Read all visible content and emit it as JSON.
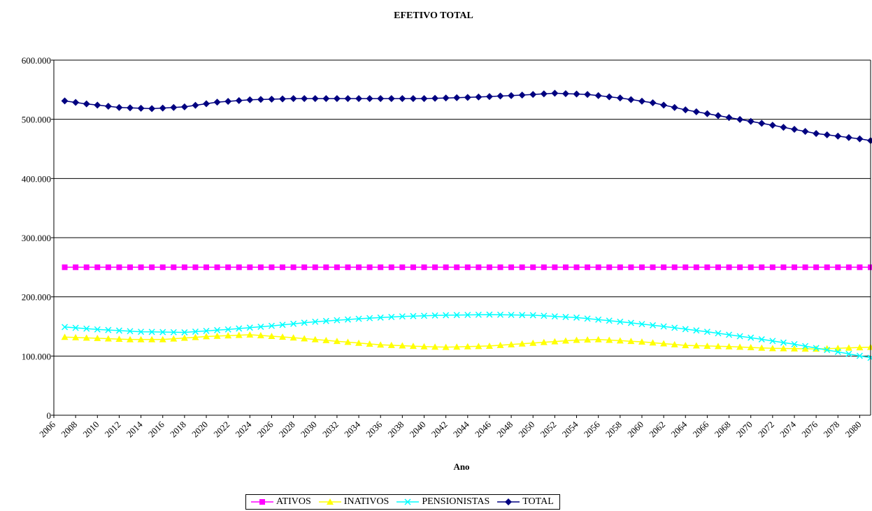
{
  "chart_data": {
    "type": "line",
    "title": "EFETIVO TOTAL",
    "xlabel": "Ano",
    "ylabel": "",
    "xlim": [
      2006,
      2081
    ],
    "ylim": [
      0,
      600000
    ],
    "yticks": [
      0,
      100000,
      200000,
      300000,
      400000,
      500000,
      600000
    ],
    "ytick_labels": [
      "0",
      "100.000",
      "200.000",
      "300.000",
      "400.000",
      "500.000",
      "600.000"
    ],
    "xtick_labels": [
      "2006",
      "2008",
      "2010",
      "2012",
      "2014",
      "2016",
      "2018",
      "2020",
      "2022",
      "2024",
      "2026",
      "2028",
      "2030",
      "2032",
      "2034",
      "2036",
      "2038",
      "2040",
      "2042",
      "2044",
      "2046",
      "2048",
      "2050",
      "2052",
      "2054",
      "2056",
      "2058",
      "2060",
      "2062",
      "2064",
      "2066",
      "2068",
      "2070",
      "2072",
      "2074",
      "2076",
      "2078",
      "2080"
    ],
    "grid": "horizontal",
    "legend_position": "bottom",
    "x_start": 2007,
    "x_end": 2081,
    "series": [
      {
        "name": "ATIVOS",
        "color": "#ff00ff",
        "marker": "square",
        "keyframes": [
          [
            2007,
            250000
          ],
          [
            2081,
            250000
          ]
        ]
      },
      {
        "name": "INATIVOS",
        "color": "#ffff00",
        "marker": "triangle",
        "keyframes": [
          [
            2007,
            132000
          ],
          [
            2013,
            128000
          ],
          [
            2016,
            128000
          ],
          [
            2020,
            133000
          ],
          [
            2024,
            136000
          ],
          [
            2028,
            131000
          ],
          [
            2032,
            125000
          ],
          [
            2036,
            119000
          ],
          [
            2040,
            116000
          ],
          [
            2042,
            115000
          ],
          [
            2046,
            117000
          ],
          [
            2050,
            122000
          ],
          [
            2054,
            127000
          ],
          [
            2056,
            128000
          ],
          [
            2060,
            124000
          ],
          [
            2064,
            118000
          ],
          [
            2068,
            116000
          ],
          [
            2072,
            113000
          ],
          [
            2076,
            112000
          ],
          [
            2081,
            115000
          ]
        ]
      },
      {
        "name": "PENSIONISTAS",
        "color": "#00ffff",
        "marker": "x",
        "keyframes": [
          [
            2007,
            149000
          ],
          [
            2010,
            145000
          ],
          [
            2014,
            141000
          ],
          [
            2018,
            140000
          ],
          [
            2022,
            145000
          ],
          [
            2026,
            151000
          ],
          [
            2030,
            158000
          ],
          [
            2034,
            163000
          ],
          [
            2038,
            167000
          ],
          [
            2042,
            169000
          ],
          [
            2046,
            170000
          ],
          [
            2050,
            169000
          ],
          [
            2054,
            165000
          ],
          [
            2058,
            158000
          ],
          [
            2062,
            150000
          ],
          [
            2066,
            141000
          ],
          [
            2070,
            131000
          ],
          [
            2074,
            120000
          ],
          [
            2078,
            107000
          ],
          [
            2081,
            97000
          ]
        ]
      },
      {
        "name": "TOTAL",
        "color": "#000080",
        "marker": "diamond",
        "keyframes": [
          [
            2007,
            531000
          ],
          [
            2009,
            526000
          ],
          [
            2012,
            520000
          ],
          [
            2015,
            518000
          ],
          [
            2018,
            521000
          ],
          [
            2021,
            529000
          ],
          [
            2024,
            533000
          ],
          [
            2028,
            535000
          ],
          [
            2032,
            535000
          ],
          [
            2036,
            535000
          ],
          [
            2040,
            535000
          ],
          [
            2044,
            537000
          ],
          [
            2048,
            540000
          ],
          [
            2052,
            544000
          ],
          [
            2055,
            542000
          ],
          [
            2058,
            536000
          ],
          [
            2061,
            528000
          ],
          [
            2064,
            516000
          ],
          [
            2068,
            503000
          ],
          [
            2072,
            490000
          ],
          [
            2076,
            476000
          ],
          [
            2080,
            467000
          ],
          [
            2081,
            464000
          ]
        ]
      }
    ]
  }
}
